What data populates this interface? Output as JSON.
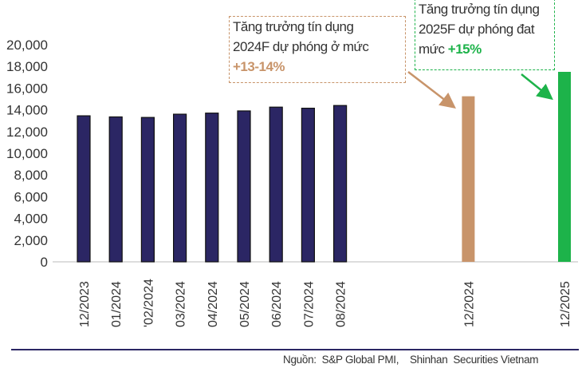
{
  "chart_data": {
    "type": "bar",
    "categories": [
      "12/2023",
      "01/2024",
      "'02/2024",
      "03/2024",
      "04/2024",
      "05/2024",
      "06/2024",
      "07/2024",
      "08/2024",
      "12/2024",
      "12/2025"
    ],
    "values": [
      13450,
      13350,
      13300,
      13600,
      13700,
      13900,
      14250,
      14150,
      14400,
      15250,
      17500
    ],
    "bar_colors": [
      "#2b2664",
      "#2b2664",
      "#2b2664",
      "#2b2664",
      "#2b2664",
      "#2b2664",
      "#2b2664",
      "#2b2664",
      "#2b2664",
      "#c8946a",
      "#1db34a"
    ],
    "ylim": [
      0,
      20000
    ],
    "yticks": [
      "0",
      "2,000",
      "4,000",
      "6,000",
      "8,000",
      "10,000",
      "12,000",
      "14,000",
      "16,000",
      "18,000",
      "20,000"
    ],
    "ytick_values": [
      0,
      2000,
      4000,
      6000,
      8000,
      10000,
      12000,
      14000,
      16000,
      18000,
      20000
    ],
    "grid": false,
    "title": "",
    "xlabel": "",
    "ylabel": ""
  },
  "annotations": [
    {
      "line1": "Tăng trưởng tín dụng",
      "line2": "2024F dự phóng ở mức",
      "prefix": "",
      "highlight": "+13-14%",
      "color": "#c8946a"
    },
    {
      "line1": "Tăng trưởng tín dụng",
      "line2": "2025F dự phóng đat",
      "prefix": "mức ",
      "highlight": "+15%",
      "color": "#1db34a"
    }
  ],
  "source": "Nguồn:  S&P Global PMI,    Shinhan  Securities Vietnam"
}
